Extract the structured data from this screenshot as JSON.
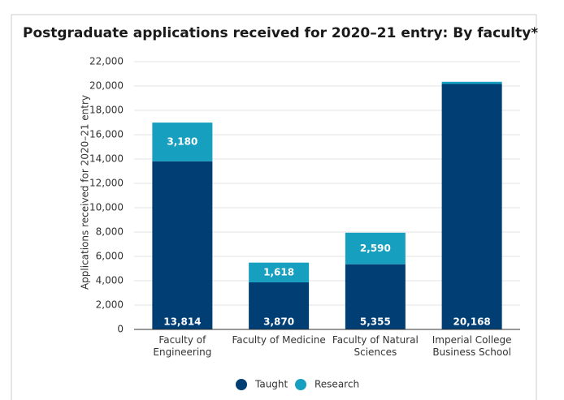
{
  "chart_data": {
    "type": "stacked_bar",
    "title": "Postgraduate applications received for 2020–21 entry: By faculty*",
    "y_label": "Applications received for 2020–21 entry",
    "categories": [
      "Faculty of Engineering",
      "Faculty of Medicine",
      "Faculty of Natural Sciences",
      "Imperial College Business School"
    ],
    "series": [
      {
        "name": "Taught",
        "color": "#003e74",
        "values": [
          13814,
          3870,
          5355,
          20168
        ],
        "value_labels": [
          "13,814",
          "3,870",
          "5,355",
          "20,168"
        ]
      },
      {
        "name": "Research",
        "color": "#179fbf",
        "values": [
          3180,
          1618,
          2590,
          180
        ],
        "value_labels": [
          "3,180",
          "1,618",
          "2,590",
          null
        ]
      }
    ],
    "ylim": [
      0,
      22000
    ],
    "yticks": [
      0,
      {
        "value": 2000,
        "label": "2,000"
      },
      {
        "value": 4000,
        "label": "4,000"
      },
      {
        "value": 6000,
        "label": "6,000"
      },
      {
        "value": 8000,
        "label": "8,000"
      },
      {
        "value": 10000,
        "label": "10,000"
      },
      {
        "value": 12000,
        "label": "12,000"
      },
      {
        "value": 14000,
        "label": "14,000"
      },
      {
        "value": 16000,
        "label": "16,000"
      },
      {
        "value": 18000,
        "label": "18,000"
      },
      {
        "value": 20000,
        "label": "20,000"
      },
      {
        "value": 22000,
        "label": "22,000"
      }
    ],
    "grid": true
  }
}
